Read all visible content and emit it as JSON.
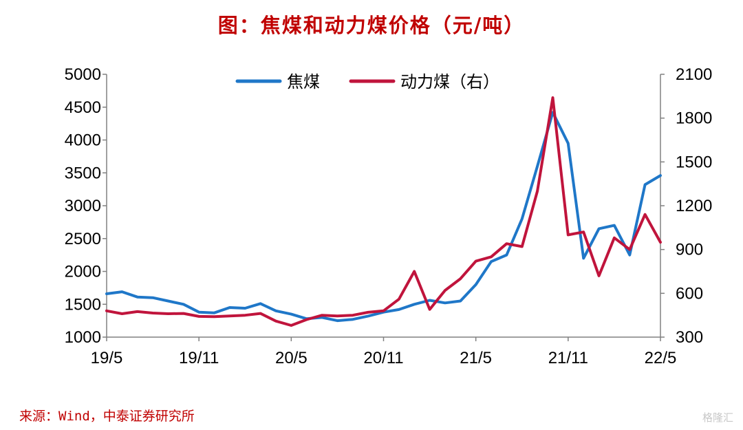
{
  "header": {
    "title": "图：焦煤和动力煤价格（元/吨）"
  },
  "footer": {
    "source": "来源：Wind，中泰证券研究所",
    "watermark": "格隆汇"
  },
  "chart_data": {
    "type": "line",
    "title": "图：焦煤和动力煤价格（元/吨）",
    "x_ticks": [
      "19/5",
      "19/11",
      "20/5",
      "20/11",
      "21/5",
      "21/11",
      "22/5"
    ],
    "y_left": {
      "ticks": [
        1000,
        1500,
        2000,
        2500,
        3000,
        3500,
        4000,
        4500,
        5000
      ],
      "range": [
        1000,
        5000
      ]
    },
    "y_right": {
      "ticks": [
        300,
        600,
        900,
        1200,
        1500,
        1800,
        2100
      ],
      "range": [
        300,
        2100
      ]
    },
    "grid": false,
    "legend_position": "top-center",
    "series": [
      {
        "name": "焦煤",
        "axis": "left",
        "color": "#1f77c8",
        "points": [
          [
            "2019-05",
            1660
          ],
          [
            "2019-06",
            1690
          ],
          [
            "2019-07",
            1610
          ],
          [
            "2019-08",
            1600
          ],
          [
            "2019-09",
            1550
          ],
          [
            "2019-10",
            1500
          ],
          [
            "2019-11",
            1380
          ],
          [
            "2019-12",
            1370
          ],
          [
            "2020-01",
            1450
          ],
          [
            "2020-02",
            1440
          ],
          [
            "2020-03",
            1510
          ],
          [
            "2020-04",
            1400
          ],
          [
            "2020-05",
            1350
          ],
          [
            "2020-06",
            1280
          ],
          [
            "2020-07",
            1300
          ],
          [
            "2020-08",
            1250
          ],
          [
            "2020-09",
            1270
          ],
          [
            "2020-10",
            1320
          ],
          [
            "2020-11",
            1380
          ],
          [
            "2020-12",
            1420
          ],
          [
            "2021-01",
            1500
          ],
          [
            "2021-02",
            1560
          ],
          [
            "2021-03",
            1520
          ],
          [
            "2021-04",
            1550
          ],
          [
            "2021-05",
            1800
          ],
          [
            "2021-06",
            2150
          ],
          [
            "2021-07",
            2250
          ],
          [
            "2021-08",
            2800
          ],
          [
            "2021-09",
            3600
          ],
          [
            "2021-10",
            4420
          ],
          [
            "2021-11",
            3950
          ],
          [
            "2021-12",
            2200
          ],
          [
            "2022-01",
            2650
          ],
          [
            "2022-02",
            2700
          ],
          [
            "2022-03",
            2250
          ],
          [
            "2022-04",
            3320
          ],
          [
            "2022-05",
            3460
          ]
        ]
      },
      {
        "name": "动力煤（右）",
        "axis": "right",
        "color": "#c0143c",
        "points": [
          [
            "2019-05",
            480
          ],
          [
            "2019-06",
            460
          ],
          [
            "2019-07",
            475
          ],
          [
            "2019-08",
            465
          ],
          [
            "2019-09",
            460
          ],
          [
            "2019-10",
            462
          ],
          [
            "2019-11",
            442
          ],
          [
            "2019-12",
            440
          ],
          [
            "2020-01",
            445
          ],
          [
            "2020-02",
            450
          ],
          [
            "2020-03",
            462
          ],
          [
            "2020-04",
            410
          ],
          [
            "2020-05",
            380
          ],
          [
            "2020-06",
            420
          ],
          [
            "2020-07",
            450
          ],
          [
            "2020-08",
            445
          ],
          [
            "2020-09",
            450
          ],
          [
            "2020-10",
            470
          ],
          [
            "2020-11",
            480
          ],
          [
            "2020-12",
            560
          ],
          [
            "2021-01",
            750
          ],
          [
            "2021-02",
            490
          ],
          [
            "2021-03",
            620
          ],
          [
            "2021-04",
            700
          ],
          [
            "2021-05",
            820
          ],
          [
            "2021-06",
            850
          ],
          [
            "2021-07",
            940
          ],
          [
            "2021-08",
            920
          ],
          [
            "2021-09",
            1300
          ],
          [
            "2021-10",
            1940
          ],
          [
            "2021-11",
            1000
          ],
          [
            "2021-12",
            1020
          ],
          [
            "2022-01",
            720
          ],
          [
            "2022-02",
            980
          ],
          [
            "2022-03",
            900
          ],
          [
            "2022-04",
            1140
          ],
          [
            "2022-05",
            950
          ]
        ]
      }
    ]
  }
}
